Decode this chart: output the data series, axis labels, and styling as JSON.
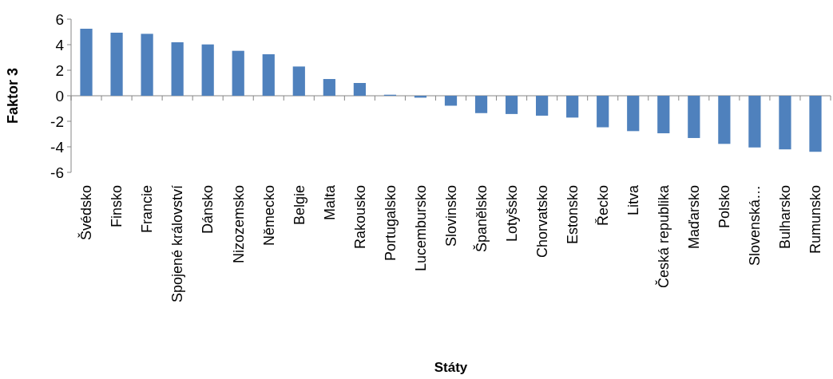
{
  "chart_data": {
    "type": "bar",
    "xlabel": "Státy",
    "ylabel": "Faktor 3",
    "categories": [
      "Švédsko",
      "Finsko",
      "Francie",
      "Spojené království",
      "Dánsko",
      "Nizozemsko",
      "Německo",
      "Belgie",
      "Malta",
      "Rakousko",
      "Portugalsko",
      "Lucembursko",
      "Slovinsko",
      "Španělsko",
      "Lotyšsko",
      "Chorvatsko",
      "Estonsko",
      "Řecko",
      "Litva",
      "Česká republika",
      "Maďarsko",
      "Polsko",
      "Slovenská…",
      "Bulharsko",
      "Rumunsko"
    ],
    "values": [
      5.25,
      4.94,
      4.85,
      4.19,
      4.02,
      3.52,
      3.25,
      2.29,
      1.31,
      1.0,
      0.08,
      -0.15,
      -0.78,
      -1.36,
      -1.43,
      -1.56,
      -1.71,
      -2.47,
      -2.77,
      -2.94,
      -3.31,
      -3.77,
      -4.05,
      -4.2,
      -4.39
    ],
    "color": "#4f81bd",
    "ylim": [
      -6,
      6
    ],
    "yticks": [
      -6,
      -4,
      -2,
      0,
      2,
      4,
      6
    ]
  }
}
